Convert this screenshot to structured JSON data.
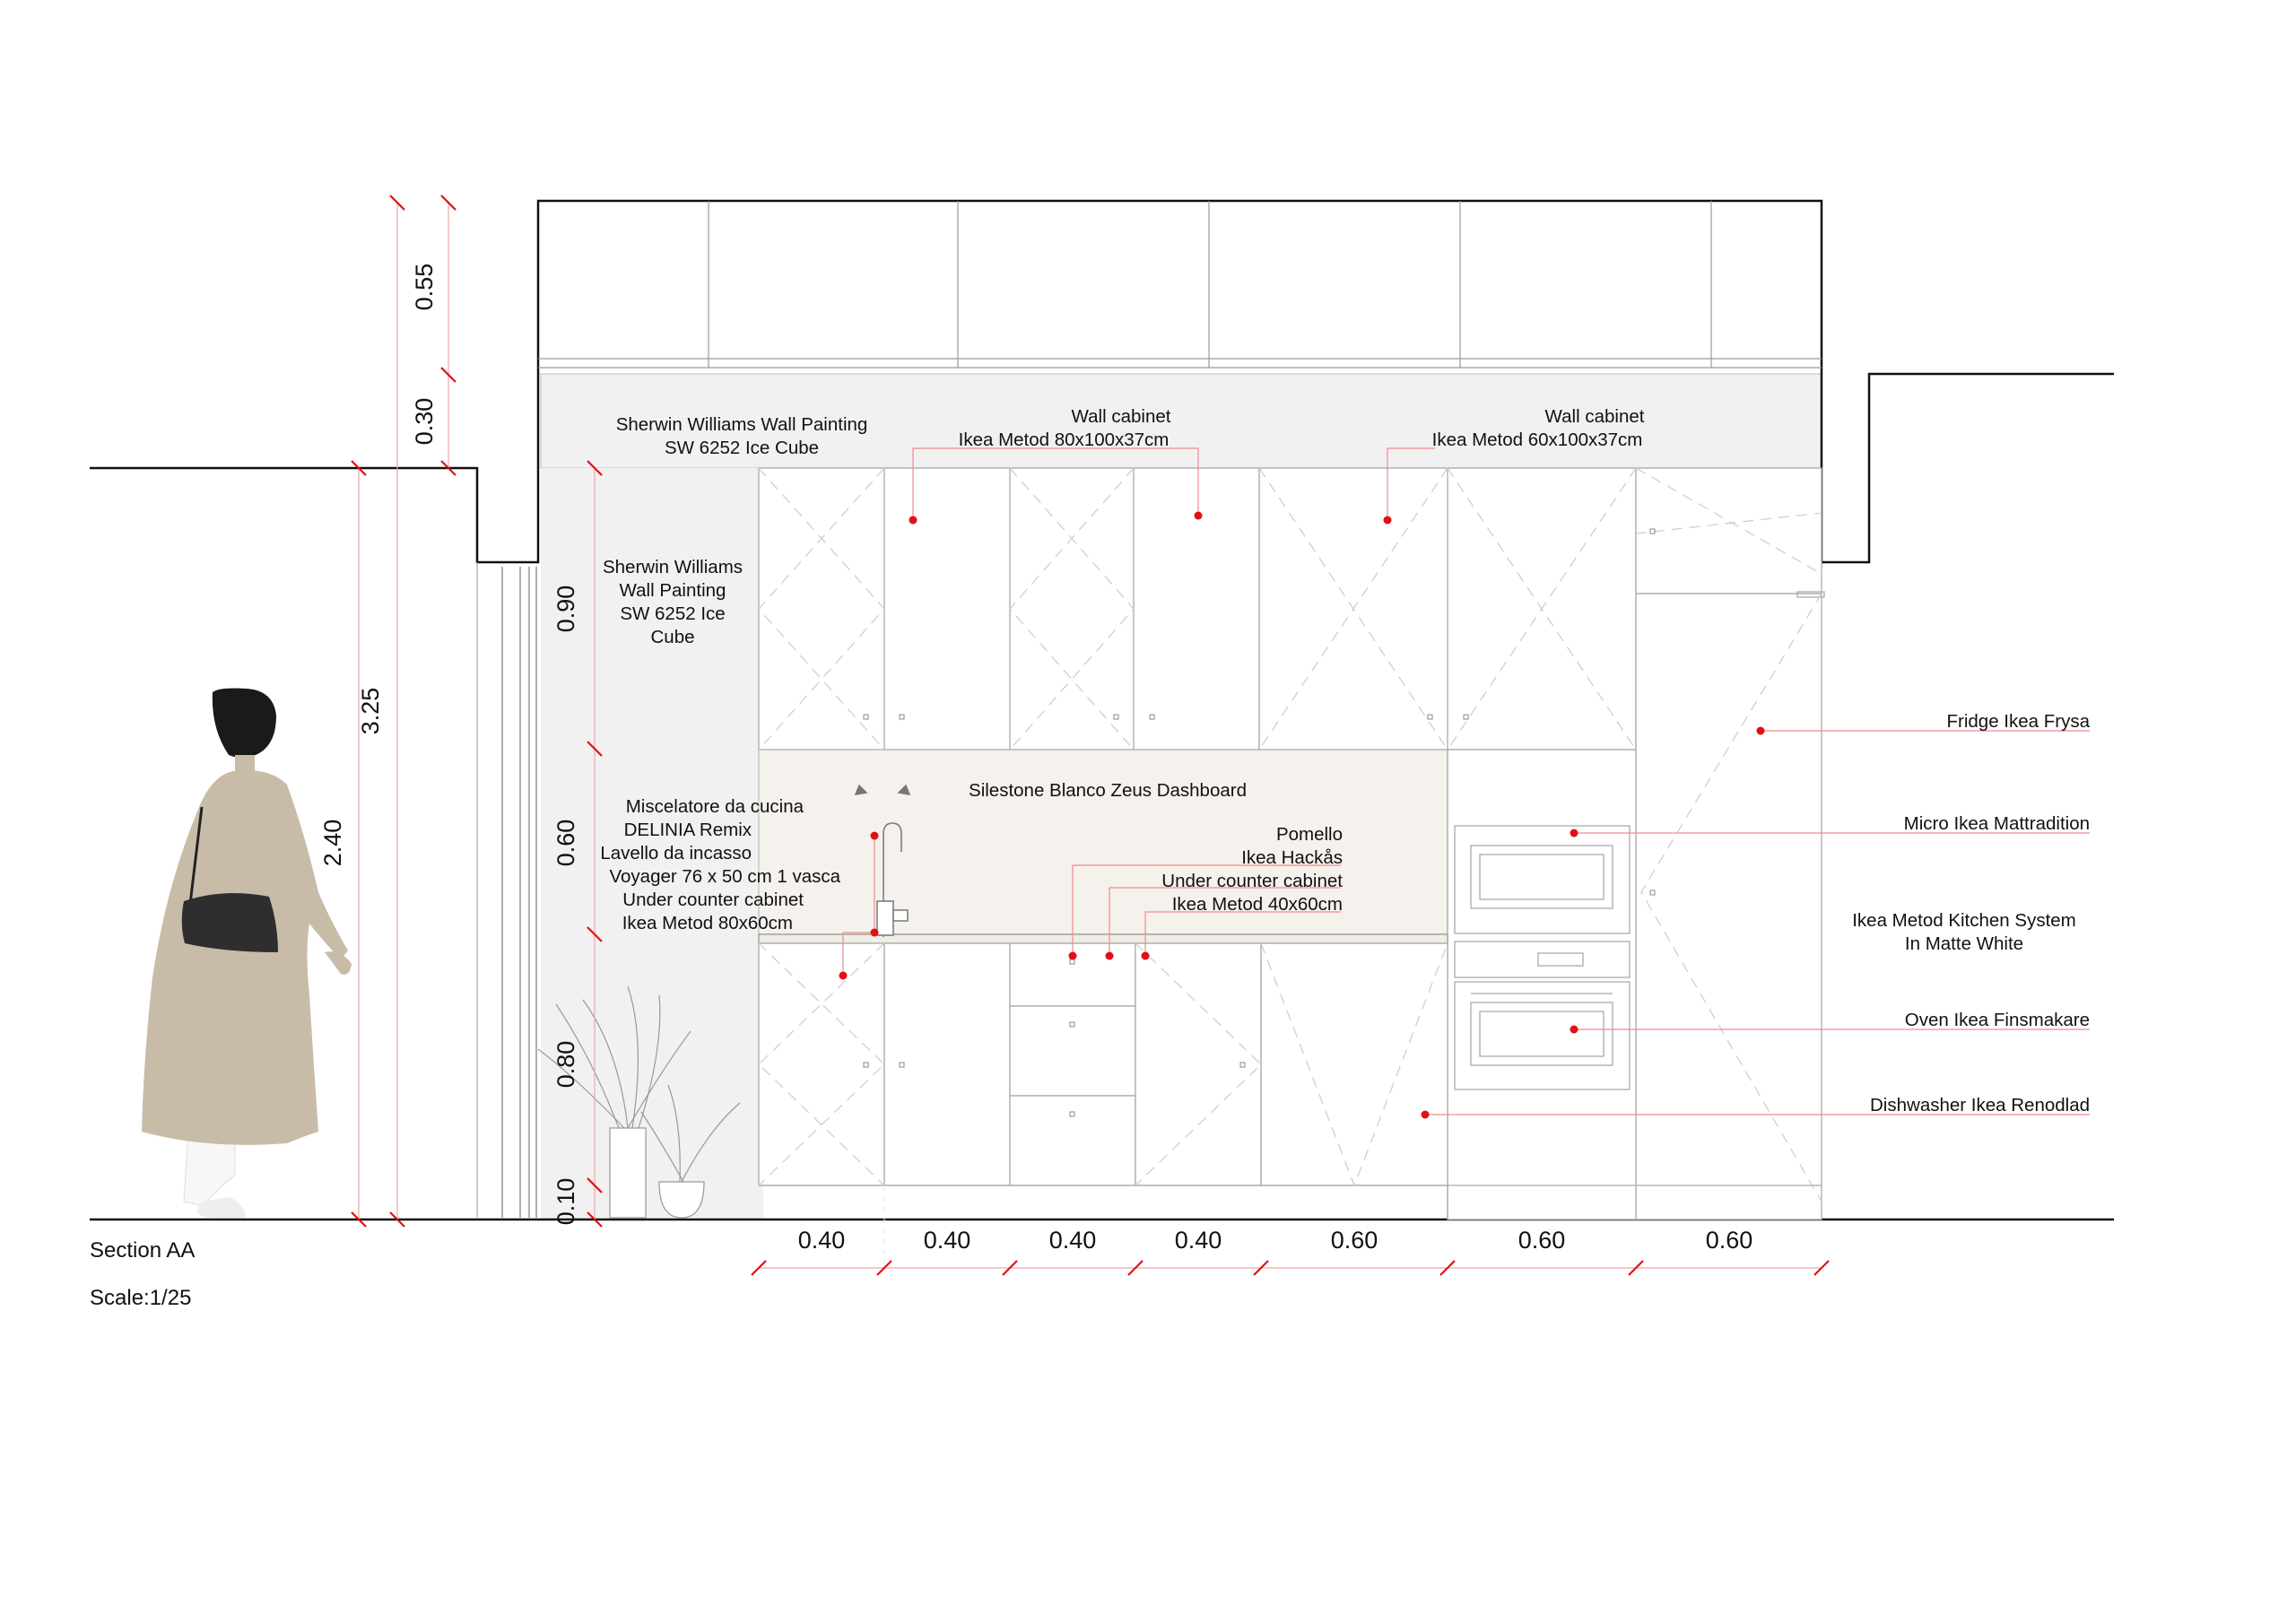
{
  "drawing": {
    "caption": "Section AA",
    "scale": "Scale:1/25"
  },
  "labels": {
    "wall_paint_upper": [
      "Sherwin Williams Wall Painting",
      "SW 6252 Ice Cube"
    ],
    "wall_cabinet_1": [
      "Wall cabinet",
      "Ikea Metod 80x100x37cm"
    ],
    "wall_cabinet_2": [
      "Wall cabinet",
      "Ikea Metod 60x100x37cm"
    ],
    "wall_paint_side": [
      "Sherwin Williams",
      "Wall Painting",
      "SW 6252 Ice",
      "Cube"
    ],
    "countertop": "Silestone Blanco Zeus Dashboard",
    "sink_group": [
      "Miscelatore da cucina",
      "DELINIA Remix",
      "Lavello da incasso",
      "Voyager 76 x 50 cm 1 vasca",
      "Under counter cabinet",
      "Ikea Metod 80x60cm"
    ],
    "knob_group": [
      "Pomello",
      "Ikea Hackås",
      "Under counter cabinet",
      "Ikea Metod 40x60cm"
    ],
    "fridge": "Fridge Ikea Frysa",
    "microwave": "Micro Ikea Mattradition",
    "system": [
      "Ikea Metod Kitchen System",
      "In Matte White"
    ],
    "oven": "Oven Ikea Finsmakare",
    "dishwasher": "Dishwasher Ikea Renodlad"
  },
  "dimensions": {
    "vertical_total": [
      "3.25",
      "2.40"
    ],
    "vertical_upper": [
      "0.55",
      "0.30"
    ],
    "vertical_stack": [
      "0.90",
      "0.60",
      "0.80",
      "0.10"
    ],
    "horizontal": [
      "0.40",
      "0.40",
      "0.40",
      "0.40",
      "0.60",
      "0.60",
      "0.60"
    ]
  },
  "colors": {
    "leader": "#e8373f",
    "marker": "#e01016",
    "panel": "#f1f1f1",
    "counter": "#f5f1ec",
    "coat": "#c8bca8",
    "hair": "#1a1a1a"
  }
}
